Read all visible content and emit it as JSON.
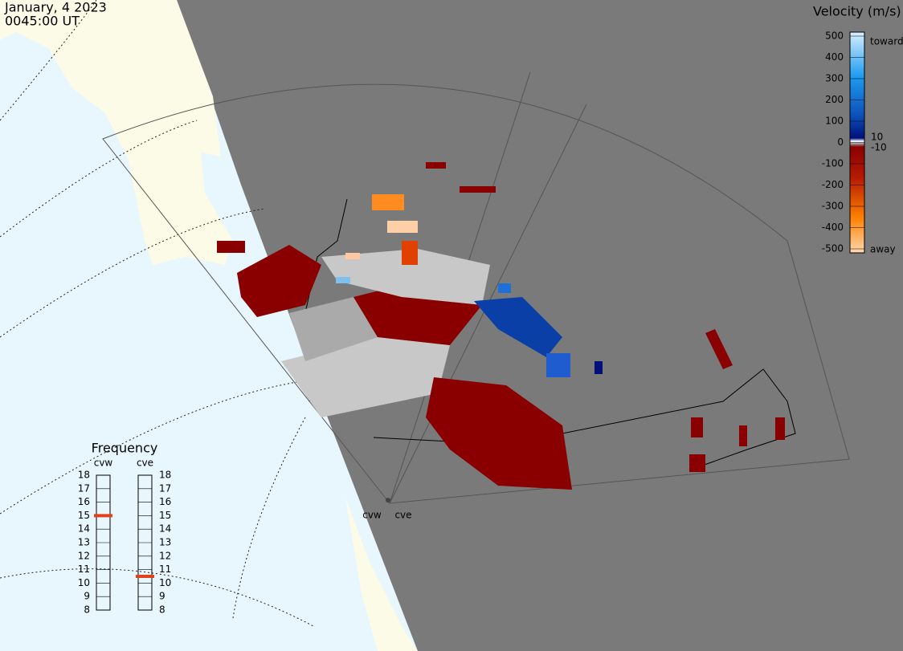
{
  "header": {
    "date": "January, 4 2023",
    "time": "0045:00 UT"
  },
  "velocity_legend": {
    "title": "Velocity (m/s)",
    "range": [
      -500,
      500
    ],
    "ticks": [
      500,
      400,
      300,
      200,
      100,
      0,
      -100,
      -200,
      -300,
      -400,
      -500
    ],
    "inner_ticks": [
      10,
      -10
    ],
    "toward": "toward",
    "away": "away"
  },
  "frequency": {
    "title": "Frequency",
    "range": [
      8,
      18
    ],
    "ticks": [
      18,
      17,
      16,
      15,
      14,
      13,
      12,
      11,
      10,
      9,
      8
    ],
    "radars": [
      {
        "name": "cvw",
        "value": 15
      },
      {
        "name": "cve",
        "value": 10.5
      }
    ]
  },
  "sites": [
    "cvw",
    "cve"
  ]
}
